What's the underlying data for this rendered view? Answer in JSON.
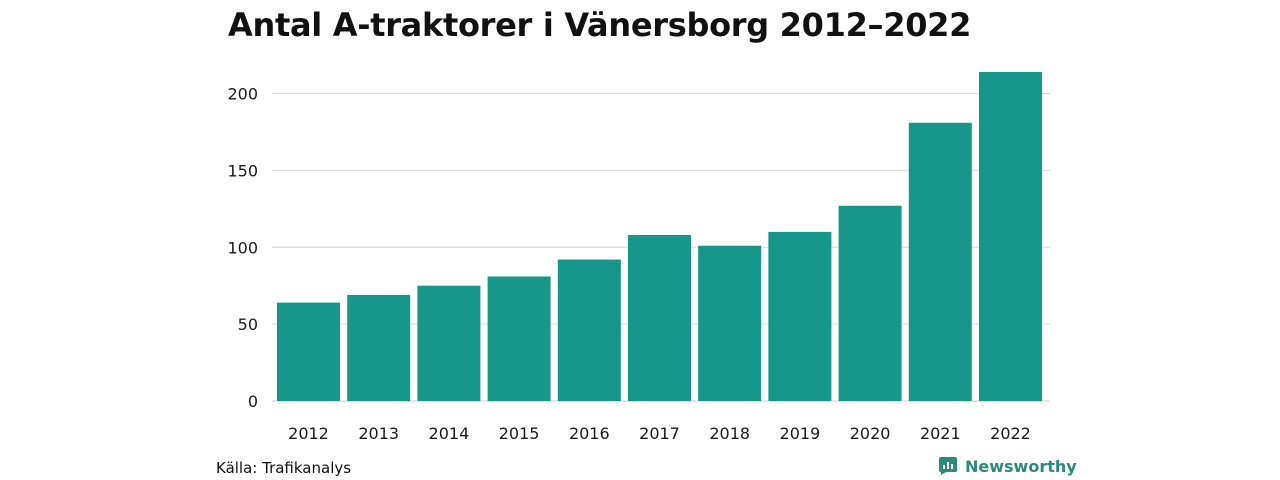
{
  "title": "Antal A-traktorer i Vänersborg 2012–2022",
  "source": "Källa: Trafikanalys",
  "brand": {
    "name": "Newsworthy",
    "icon": "newsworthy-logo-icon",
    "color": "#2a8a7e"
  },
  "colors": {
    "bar": "#17968a",
    "grid": "#d9d9d9",
    "baseline": "#cccccc"
  },
  "chart_data": {
    "type": "bar",
    "title": "Antal A-traktorer i Vänersborg 2012–2022",
    "categories": [
      "2012",
      "2013",
      "2014",
      "2015",
      "2016",
      "2017",
      "2018",
      "2019",
      "2020",
      "2021",
      "2022"
    ],
    "values": [
      64,
      69,
      75,
      81,
      92,
      108,
      101,
      110,
      127,
      181,
      214
    ],
    "xlabel": "",
    "ylabel": "",
    "ylim": [
      0,
      214
    ],
    "yticks": [
      0,
      50,
      100,
      150,
      200
    ],
    "grid": true
  }
}
